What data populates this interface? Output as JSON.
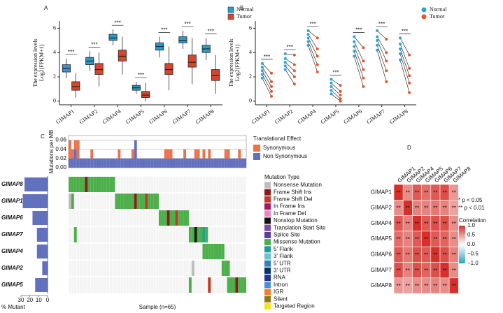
{
  "chart_data": [
    {
      "type": "box",
      "label": "A",
      "ylabel": [
        "The expression levels",
        "Log2(FPKM+1)"
      ],
      "categories": [
        "GIMAP1",
        "GIMAP2",
        "GIMAP4",
        "GIMAP5",
        "GIMAP6",
        "GIMAP7",
        "GIMAP8"
      ],
      "series": [
        {
          "name": "Normal",
          "color": "#2b9bcb",
          "values": [
            {
              "low": 1.9,
              "q1": 2.4,
              "median": 2.7,
              "q3": 3.0,
              "high": 3.5
            },
            {
              "low": 2.5,
              "q1": 3.0,
              "median": 3.3,
              "q3": 3.6,
              "high": 4.1
            },
            {
              "low": 4.6,
              "q1": 5.0,
              "median": 5.2,
              "q3": 5.5,
              "high": 5.9
            },
            {
              "low": 0.6,
              "q1": 0.9,
              "median": 1.1,
              "q3": 1.3,
              "high": 1.6
            },
            {
              "low": 3.6,
              "q1": 4.2,
              "median": 4.5,
              "q3": 4.8,
              "high": 5.3
            },
            {
              "low": 4.3,
              "q1": 4.8,
              "median": 5.0,
              "q3": 5.3,
              "high": 5.8
            },
            {
              "low": 3.4,
              "q1": 4.0,
              "median": 4.3,
              "q3": 4.6,
              "high": 5.2
            }
          ]
        },
        {
          "name": "Tumor",
          "color": "#d5472c",
          "values": [
            {
              "low": 0.3,
              "q1": 0.9,
              "median": 1.2,
              "q3": 1.6,
              "high": 2.3
            },
            {
              "low": 1.2,
              "q1": 2.2,
              "median": 2.6,
              "q3": 3.1,
              "high": 4.0
            },
            {
              "low": 2.2,
              "q1": 3.3,
              "median": 3.7,
              "q3": 4.2,
              "high": 5.3
            },
            {
              "low": 0.0,
              "q1": 0.3,
              "median": 0.5,
              "q3": 0.8,
              "high": 1.5
            },
            {
              "low": 0.9,
              "q1": 2.2,
              "median": 2.6,
              "q3": 3.1,
              "high": 4.5
            },
            {
              "low": 1.4,
              "q1": 2.8,
              "median": 3.2,
              "q3": 3.8,
              "high": 5.2
            },
            {
              "low": 0.6,
              "q1": 1.7,
              "median": 2.1,
              "q3": 2.6,
              "high": 3.8
            }
          ]
        }
      ],
      "annotations": [
        "***",
        "***",
        "***",
        "***",
        "***",
        "***",
        "***"
      ],
      "ylim": [
        -0.3,
        6.6
      ],
      "yticks": [
        0,
        2,
        4,
        6
      ]
    },
    {
      "type": "paired",
      "label": "B",
      "ylabel": [
        "The expression levels",
        "Log2(FPKM+1)"
      ],
      "categories": [
        "GIMAP1",
        "GIMAP2",
        "GIMAP4",
        "GIMAP5",
        "GIMAP6",
        "GIMAP7",
        "GIMAP8"
      ],
      "series": [
        {
          "name": "Normal",
          "color": "#2ba3d6",
          "values": [
            [
              3.1,
              2.8,
              2.5,
              2.2,
              1.9
            ],
            [
              3.9,
              3.5,
              3.2,
              2.9,
              2.6
            ],
            [
              5.8,
              5.5,
              5.2,
              4.9,
              4.6
            ],
            [
              1.8,
              1.5,
              1.2,
              0.9,
              0.6
            ],
            [
              5.3,
              4.9,
              4.5,
              4.1,
              3.7
            ],
            [
              5.8,
              5.3,
              5.0,
              4.6,
              4.2
            ],
            [
              5.2,
              4.7,
              4.3,
              3.9,
              3.4
            ]
          ]
        },
        {
          "name": "Tumor",
          "color": "#e4562c",
          "values": [
            [
              2.3,
              1.6,
              1.2,
              0.8,
              0.4
            ],
            [
              3.8,
              3.0,
              2.5,
              2.0,
              1.4
            ],
            [
              5.2,
              4.3,
              3.7,
              3.0,
              2.4
            ],
            [
              1.3,
              0.8,
              0.5,
              0.2,
              0.0
            ],
            [
              4.4,
              3.3,
              2.6,
              1.9,
              1.2
            ],
            [
              5.1,
              4.0,
              3.3,
              2.5,
              1.6
            ],
            [
              3.8,
              2.7,
              2.1,
              1.5,
              0.7
            ]
          ]
        }
      ],
      "annotations": [
        "***",
        "***",
        "***",
        "***",
        "***",
        "***",
        "***"
      ],
      "ylim": [
        -0.3,
        6.6
      ],
      "yticks": [
        0,
        2,
        4,
        6
      ]
    },
    {
      "type": "oncoplot",
      "label": "C",
      "genes": [
        "GIMAP8",
        "GIMAP1",
        "GIMAP6",
        "GIMAP7",
        "GIMAP4",
        "GIMAP2",
        "GIMAP5"
      ],
      "percent_mutant": [
        26,
        28,
        17,
        12,
        12,
        6,
        14
      ],
      "percent_label": "% Mutant",
      "xlim": [
        30,
        0
      ],
      "xticks": [
        30,
        20,
        10,
        0
      ],
      "sample_label": "Sample (n=65)",
      "samples": 65,
      "mutations": [
        {
          "samples": [
            1,
            2,
            3,
            4,
            5,
            6,
            7,
            8,
            9,
            10,
            11,
            12,
            13,
            14,
            15,
            16,
            17
          ],
          "types": [
            8,
            8,
            8,
            8,
            8,
            8,
            1,
            8,
            8,
            8,
            8,
            8,
            8,
            8,
            8,
            8,
            8
          ]
        },
        {
          "samples": [
            1,
            2,
            18,
            19,
            20,
            21,
            22,
            23,
            24,
            25,
            26,
            27,
            28,
            29,
            30,
            31,
            32,
            33
          ],
          "types": [
            0,
            8,
            8,
            8,
            8,
            8,
            8,
            8,
            8,
            1,
            8,
            8,
            8,
            2,
            8,
            8,
            8,
            8
          ]
        },
        {
          "samples": [
            34,
            35,
            36,
            37,
            38,
            39,
            40,
            41,
            42,
            43,
            44
          ],
          "types": [
            8,
            8,
            8,
            1,
            8,
            8,
            2,
            8,
            8,
            8,
            8
          ]
        },
        {
          "samples": [
            3,
            45,
            46,
            47,
            48,
            49,
            50,
            51
          ],
          "types": [
            8,
            8,
            8,
            5,
            8,
            8,
            9,
            8
          ]
        },
        {
          "samples": [
            50,
            51,
            52,
            53,
            54,
            55,
            56,
            57
          ],
          "types": [
            8,
            8,
            8,
            8,
            8,
            8,
            8,
            8
          ]
        },
        {
          "samples": [
            46,
            57,
            58,
            59
          ],
          "types": [
            0,
            8,
            8,
            8
          ]
        },
        {
          "samples": [
            45,
            52,
            59,
            60,
            61,
            62,
            63,
            64,
            65
          ],
          "types": [
            8,
            2,
            8,
            8,
            8,
            1,
            8,
            8,
            8
          ]
        }
      ],
      "mutation_type_title": "Mutation Type",
      "mutation_types": [
        {
          "name": "Nonsense Mutation",
          "color": "#bdbdbd"
        },
        {
          "name": "Frame Shift Ins",
          "color": "#8b1a1a"
        },
        {
          "name": "Frame Shift Del",
          "color": "#c0392b"
        },
        {
          "name": "In Frame Ins",
          "color": "#a3195b"
        },
        {
          "name": "In Frame Del",
          "color": "#e78ac3"
        },
        {
          "name": "Nonstop Mutation",
          "color": "#111111"
        },
        {
          "name": "Translation Start Site",
          "color": "#7b4fa0"
        },
        {
          "name": "Splice Site",
          "color": "#5e3c99"
        },
        {
          "name": "Missense Mutation",
          "color": "#4daf4a"
        },
        {
          "name": "5' Flank",
          "color": "#1b9e9e"
        },
        {
          "name": "3' Flank",
          "color": "#6cc3c9"
        },
        {
          "name": "5' UTR",
          "color": "#3182bd"
        },
        {
          "name": "3' UTR",
          "color": "#08306b"
        },
        {
          "name": "RNA",
          "color": "#253494"
        },
        {
          "name": "Intron",
          "color": "#4a90d9"
        },
        {
          "name": "IGR",
          "color": "#f08030"
        },
        {
          "name": "Silent",
          "color": "#8c7a1a"
        },
        {
          "name": "Targeted Region",
          "color": "#f5e61c"
        }
      ],
      "tmb_label": "Mutations per MB",
      "tmb_ylim": [
        0,
        0.07
      ],
      "tmb_yticks": [
        {
          "value": 0,
          "label": "0.00"
        },
        {
          "value": 0.02,
          "label": "0.02"
        },
        {
          "value": 0.04,
          "label": "0.04"
        },
        {
          "value": 0.06,
          "label": "0.06"
        }
      ],
      "effect_title": "Translational Effect",
      "effects": [
        {
          "name": "Non Synonymous",
          "color": "#6270c0",
          "values": [
            0.02,
            0.02,
            0.04,
            0.02,
            0.02,
            0.02,
            0.02,
            0.02,
            0.02,
            0.02,
            0.02,
            0.02,
            0.02,
            0.02,
            0.02,
            0.02,
            0.02,
            0.02,
            0.02,
            0.02,
            0.02,
            0.02,
            0.02,
            0.02,
            0.06,
            0.02,
            0.02,
            0.02,
            0.02,
            0.02,
            0.02,
            0.02,
            0.02,
            0.02,
            0.02,
            0.02,
            0.02,
            0.02,
            0.02,
            0.02,
            0.02,
            0.02,
            0.02,
            0.02,
            0.02,
            0.02,
            0.02,
            0.02,
            0.02,
            0.02,
            0.02,
            0.02,
            0.02,
            0.02,
            0.02,
            0.02,
            0.02,
            0.02,
            0.02,
            0.02,
            0.02,
            0.02,
            0.02,
            0.02,
            0.02
          ]
        },
        {
          "name": "Synonymous",
          "color": "#ee7248",
          "values": [
            0.04,
            0.02,
            0.02,
            0.04,
            0,
            0,
            0,
            0,
            0.02,
            0,
            0,
            0,
            0,
            0,
            0,
            0,
            0,
            0,
            0.02,
            0,
            0,
            0,
            0,
            0.02,
            0,
            0,
            0,
            0,
            0,
            0,
            0,
            0,
            0,
            0,
            0,
            0.02,
            0.02,
            0.02,
            0,
            0,
            0,
            0,
            0.02,
            0,
            0,
            0,
            0.02,
            0.02,
            0,
            0.02,
            0,
            0.02,
            0,
            0,
            0,
            0,
            0,
            0.02,
            0.02,
            0,
            0,
            0,
            0.02,
            0,
            0
          ]
        }
      ]
    },
    {
      "type": "heatmap",
      "label": "D",
      "categories": [
        "GIMAP1",
        "GIMAP2",
        "GIMAP4",
        "GIMAP5",
        "GIMAP6",
        "GIMAP7",
        "GIMAP8"
      ],
      "values": [
        [
          1,
          0.55,
          0.8,
          0.7,
          0.8,
          0.85,
          0.5
        ],
        [
          0.55,
          1,
          0.6,
          0.6,
          0.65,
          0.6,
          0.45
        ],
        [
          0.8,
          0.6,
          1,
          0.8,
          0.85,
          0.85,
          0.55
        ],
        [
          0.7,
          0.6,
          0.8,
          1,
          0.8,
          0.75,
          0.55
        ],
        [
          0.8,
          0.65,
          0.85,
          0.8,
          1,
          0.85,
          0.6
        ],
        [
          0.85,
          0.6,
          0.85,
          0.75,
          0.85,
          1,
          0.55
        ],
        [
          0.5,
          0.45,
          0.55,
          0.55,
          0.6,
          0.55,
          1
        ]
      ],
      "value_labels": [
        [
          "**",
          "**",
          "**",
          "**",
          "**",
          "**",
          "**"
        ],
        [
          "**",
          "**",
          "**",
          "**",
          "**",
          "**",
          "**"
        ],
        [
          "**",
          "**",
          "**",
          "**",
          "**",
          "**",
          "**"
        ],
        [
          "**",
          "**",
          "**",
          "**",
          "**",
          "**",
          "**"
        ],
        [
          "**",
          "**",
          "**",
          "**",
          "**",
          "**",
          "**"
        ],
        [
          "**",
          "**",
          "**",
          "**",
          "**",
          "**",
          "**"
        ],
        [
          "**",
          "**",
          "**",
          "**",
          "**",
          "**",
          "**"
        ]
      ],
      "notes": [
        "* p < 0.05",
        "** p < 0.01"
      ],
      "colorbar_title": "Correlation",
      "colors": {
        "low": "#2ba3c6",
        "mid": "#ffffff",
        "high": "#d7302a"
      },
      "clim": [
        -1,
        1
      ],
      "cticks": [
        {
          "value": 1,
          "label": "1.0"
        },
        {
          "value": 0.5,
          "label": "0.5"
        },
        {
          "value": 0,
          "label": "0.0"
        },
        {
          "value": -0.5,
          "label": "−0.5"
        },
        {
          "value": -1,
          "label": "−1.0"
        }
      ]
    }
  ]
}
